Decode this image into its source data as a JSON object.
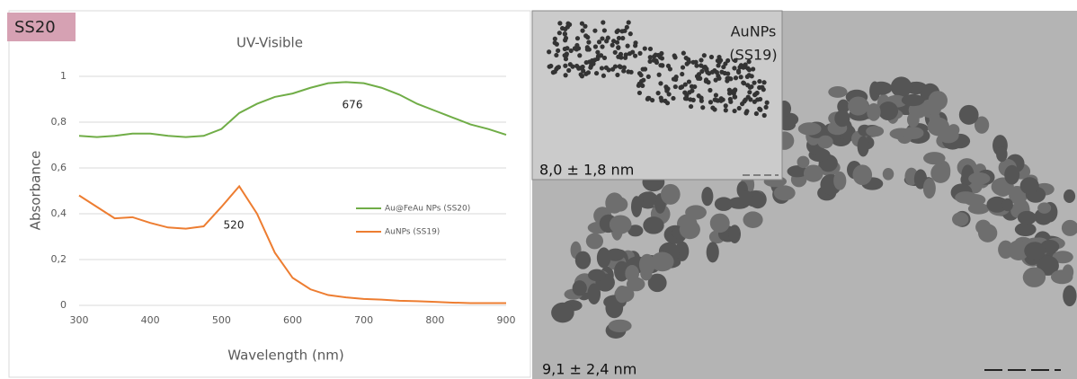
{
  "sample_label": "SS20",
  "chart_data": {
    "type": "line",
    "title": "UV-Visible",
    "x_label": "Wavelength (nm)",
    "y_label": "Absorbance",
    "x": [
      300,
      325,
      350,
      375,
      400,
      425,
      450,
      475,
      500,
      525,
      550,
      575,
      600,
      625,
      650,
      675,
      700,
      725,
      750,
      775,
      800,
      825,
      850,
      875,
      900
    ],
    "series": [
      {
        "name": "Au@FeAu NPs (SS20)",
        "color": "#70ad47",
        "values": [
          0.74,
          0.735,
          0.74,
          0.75,
          0.75,
          0.74,
          0.735,
          0.74,
          0.77,
          0.84,
          0.88,
          0.91,
          0.925,
          0.95,
          0.97,
          0.975,
          0.97,
          0.95,
          0.92,
          0.88,
          0.85,
          0.82,
          0.79,
          0.77,
          0.745
        ]
      },
      {
        "name": "AuNPs (SS19)",
        "color": "#ed7d31",
        "values": [
          0.48,
          0.43,
          0.38,
          0.385,
          0.36,
          0.34,
          0.335,
          0.345,
          0.43,
          0.52,
          0.4,
          0.23,
          0.12,
          0.07,
          0.045,
          0.035,
          0.028,
          0.025,
          0.02,
          0.018,
          0.015,
          0.012,
          0.01,
          0.01,
          0.01
        ]
      }
    ],
    "annotations": [
      "676",
      "520"
    ],
    "xlim": [
      300,
      900
    ],
    "xticks": [
      300,
      400,
      500,
      600,
      700,
      800,
      900
    ],
    "ylim": [
      0,
      1
    ],
    "yticks": [
      0,
      {
        "value": 0.2,
        "label": "0,2"
      },
      {
        "value": 0.4,
        "label": "0,4"
      },
      {
        "value": 0.6,
        "label": "0,6"
      },
      {
        "value": 0.8,
        "label": "0,8"
      },
      1
    ],
    "grid": true,
    "legend": "right"
  },
  "tem_image": {
    "size_label": "9,1 ± 2,4 nm",
    "inset": {
      "title_lines": [
        "AuNPs",
        "(SS19)"
      ],
      "size_label": "8,0 ± 1,8 nm"
    }
  }
}
